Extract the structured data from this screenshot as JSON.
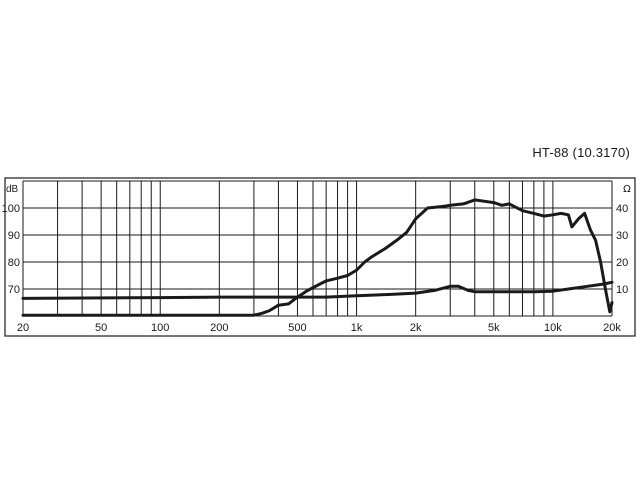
{
  "title": "HT-88  (10.3170)",
  "chart_data": {
    "type": "line",
    "xscale": "log",
    "xlim": [
      20,
      20000
    ],
    "xticks": [
      {
        "value": 20,
        "label": "20"
      },
      {
        "value": 50,
        "label": "50"
      },
      {
        "value": 100,
        "label": "100"
      },
      {
        "value": 200,
        "label": "200"
      },
      {
        "value": 500,
        "label": "500"
      },
      {
        "value": 1000,
        "label": "1k"
      },
      {
        "value": 2000,
        "label": "2k"
      },
      {
        "value": 5000,
        "label": "5k"
      },
      {
        "value": 10000,
        "label": "10k"
      },
      {
        "value": 20000,
        "label": "20k"
      }
    ],
    "left_axis": {
      "unit": "dB",
      "range": [
        60,
        110
      ],
      "ticks": [
        70,
        80,
        90,
        100
      ]
    },
    "right_axis": {
      "unit": "Ω",
      "range": [
        0,
        50
      ],
      "ticks": [
        10,
        20,
        30,
        40
      ]
    },
    "grid": true,
    "series": [
      {
        "axis": "left",
        "color": "#1a1a1a",
        "x": [
          20,
          100,
          200,
          300,
          330,
          360,
          400,
          450,
          500,
          550,
          600,
          700,
          800,
          900,
          1000,
          1100,
          1200,
          1400,
          1600,
          1800,
          2000,
          2300,
          2700,
          3000,
          3500,
          4000,
          4500,
          5000,
          5500,
          6000,
          7000,
          8000,
          9000,
          10000,
          11000,
          12000,
          12500,
          13500,
          14500,
          15500,
          16500,
          17500,
          18500,
          19500,
          20000
        ],
        "values": [
          60.3,
          60.3,
          60.3,
          60.3,
          61.0,
          62.0,
          64.0,
          64.5,
          67.0,
          69.0,
          70.5,
          73.0,
          74.0,
          75.0,
          77.0,
          80.0,
          82.0,
          85.0,
          88.0,
          91.0,
          96.0,
          100.0,
          100.5,
          101.0,
          101.5,
          103.0,
          102.5,
          102.0,
          101.0,
          101.5,
          99.0,
          98.0,
          97.0,
          97.5,
          98.0,
          97.5,
          93.0,
          96.0,
          98.0,
          92.0,
          88.0,
          80.0,
          70.0,
          61.5,
          65.0
        ]
      },
      {
        "axis": "right",
        "color": "#1a1a1a",
        "x": [
          20,
          100,
          200,
          400,
          500,
          700,
          1000,
          1500,
          2000,
          2500,
          3000,
          3300,
          3700,
          4000,
          5000,
          6000,
          8000,
          10000,
          12000,
          15000,
          18000,
          20000
        ],
        "values": [
          6.5,
          6.8,
          7.0,
          7.0,
          7.0,
          7.0,
          7.5,
          8.0,
          8.5,
          9.5,
          11.0,
          11.0,
          9.5,
          9.0,
          9.0,
          9.0,
          9.0,
          9.2,
          10.0,
          11.0,
          11.8,
          12.5
        ]
      }
    ]
  }
}
